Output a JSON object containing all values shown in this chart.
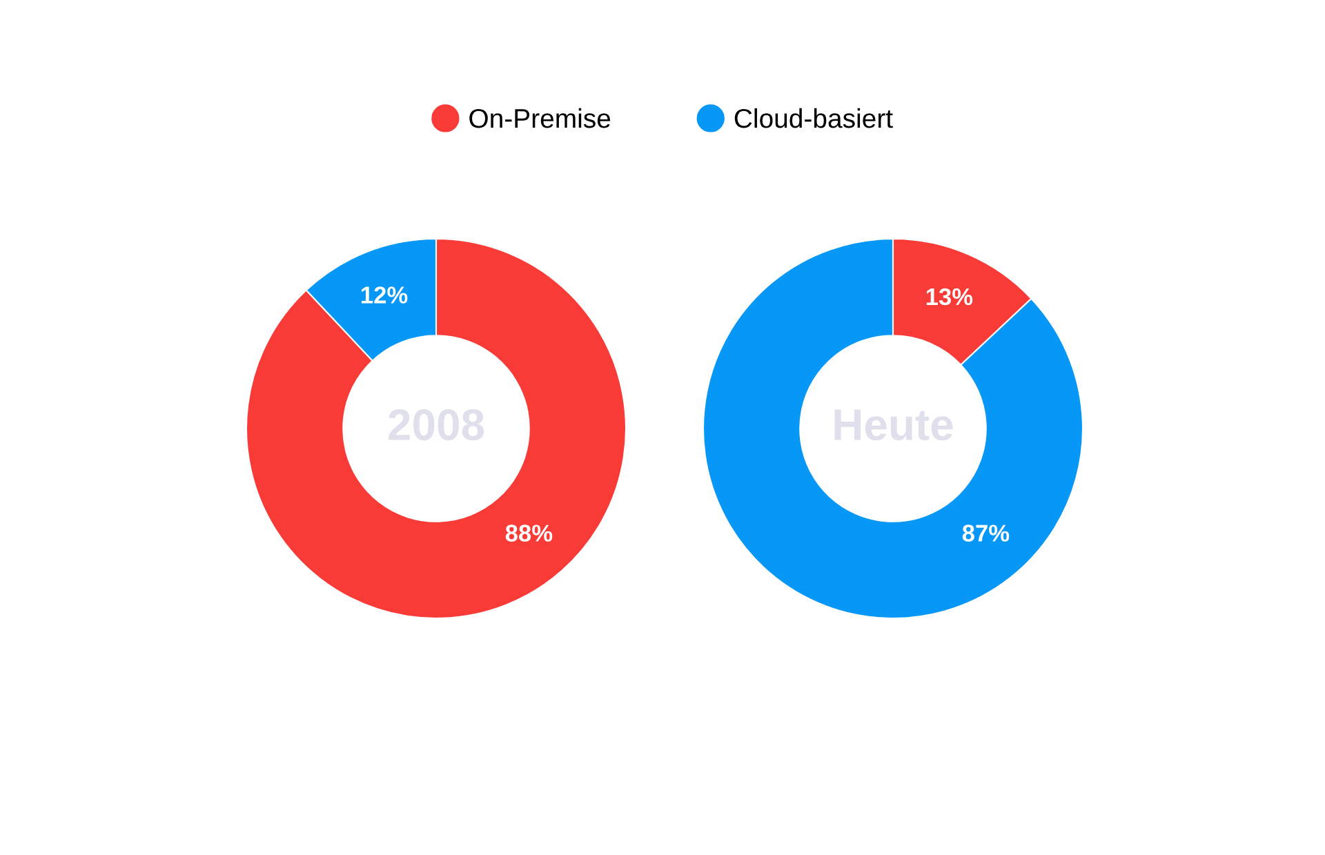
{
  "chart_data": {
    "type": "donut",
    "categories": [
      "On-Premise",
      "Cloud-basiert"
    ],
    "colors": [
      "#f93b38",
      "#0797f6"
    ],
    "legend": "top",
    "series": [
      {
        "name": "2008",
        "values": [
          88,
          12
        ],
        "value_labels": [
          "88%",
          "12%"
        ]
      },
      {
        "name": "Heute",
        "values": [
          13,
          87
        ],
        "value_labels": [
          "13%",
          "87%"
        ]
      }
    ]
  }
}
